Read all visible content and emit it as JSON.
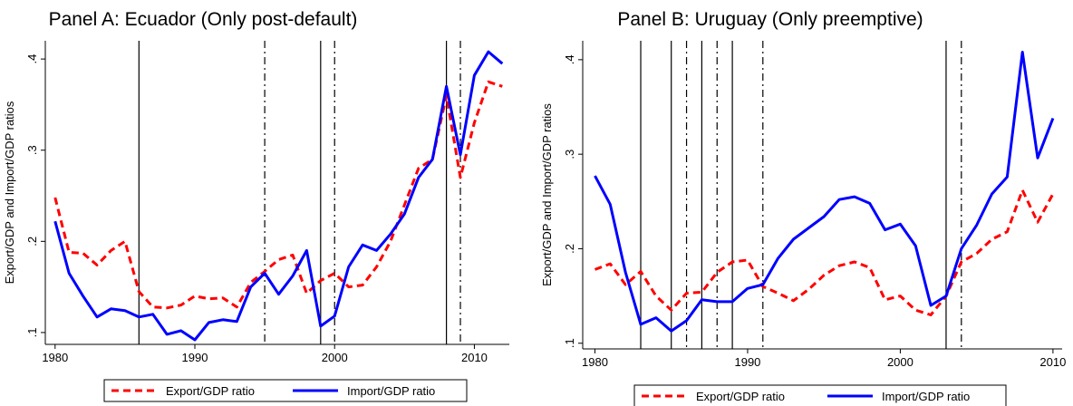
{
  "chart_data": [
    {
      "type": "line",
      "title": "Panel A: Ecuador (Only post-default)",
      "y_label": "Export/GDP and Import/GDP ratios",
      "x": [
        1980,
        1981,
        1982,
        1983,
        1984,
        1985,
        1986,
        1987,
        1988,
        1989,
        1990,
        1991,
        1992,
        1993,
        1994,
        1995,
        1996,
        1997,
        1998,
        1999,
        2000,
        2001,
        2002,
        2003,
        2004,
        2005,
        2006,
        2007,
        2008,
        2009,
        2010,
        2011,
        2012
      ],
      "series": [
        {
          "name": "Export/GDP ratio",
          "color": "#ff0000",
          "dash": true,
          "values": [
            0.248,
            0.188,
            0.187,
            0.174,
            0.19,
            0.2,
            0.145,
            0.128,
            0.127,
            0.13,
            0.14,
            0.137,
            0.138,
            0.128,
            0.155,
            0.167,
            0.18,
            0.185,
            0.143,
            0.157,
            0.165,
            0.15,
            0.152,
            0.172,
            0.2,
            0.24,
            0.28,
            0.29,
            0.36,
            0.27,
            0.33,
            0.375,
            0.37
          ]
        },
        {
          "name": "Import/GDP ratio",
          "color": "#0000ff",
          "dash": false,
          "values": [
            0.222,
            0.165,
            0.14,
            0.117,
            0.126,
            0.124,
            0.117,
            0.12,
            0.098,
            0.102,
            0.092,
            0.111,
            0.114,
            0.112,
            0.15,
            0.165,
            0.142,
            0.162,
            0.19,
            0.107,
            0.118,
            0.172,
            0.196,
            0.19,
            0.208,
            0.23,
            0.27,
            0.29,
            0.37,
            0.295,
            0.382,
            0.408,
            0.395
          ]
        }
      ],
      "vlines": [
        {
          "x": 1986,
          "style": "solid"
        },
        {
          "x": 1995,
          "style": "dashed"
        },
        {
          "x": 1999,
          "style": "solid"
        },
        {
          "x": 2000,
          "style": "dashed"
        },
        {
          "x": 2008,
          "style": "solid"
        },
        {
          "x": 2009,
          "style": "dashed"
        }
      ],
      "xlim": [
        1979.3,
        2012.5
      ],
      "xticks": [
        1980,
        1990,
        2000,
        2010
      ],
      "ylim": [
        0.087,
        0.42
      ],
      "yticks": [
        {
          "value": 0.1,
          "label": ".1"
        },
        {
          "value": 0.2,
          "label": ".2"
        },
        {
          "value": 0.3,
          "label": ".3"
        },
        {
          "value": 0.4,
          "label": ".4"
        }
      ],
      "legend_position": "bottom"
    },
    {
      "type": "line",
      "title": "Panel B: Uruguay (Only preemptive)",
      "y_label": "Export/GDP and Import/GDP ratios",
      "x": [
        1980,
        1981,
        1982,
        1983,
        1984,
        1985,
        1986,
        1987,
        1988,
        1989,
        1990,
        1991,
        1992,
        1993,
        1994,
        1995,
        1996,
        1997,
        1998,
        1999,
        2000,
        2001,
        2002,
        2003,
        2004,
        2005,
        2006,
        2007,
        2008,
        2009,
        2010
      ],
      "series": [
        {
          "name": "Export/GDP ratio",
          "color": "#ff0000",
          "dash": true,
          "values": [
            0.178,
            0.184,
            0.162,
            0.176,
            0.15,
            0.135,
            0.153,
            0.154,
            0.175,
            0.186,
            0.188,
            0.16,
            0.153,
            0.145,
            0.157,
            0.172,
            0.182,
            0.186,
            0.18,
            0.146,
            0.15,
            0.135,
            0.13,
            0.15,
            0.186,
            0.195,
            0.21,
            0.218,
            0.262,
            0.228,
            0.258
          ]
        },
        {
          "name": "Import/GDP ratio",
          "color": "#0000ff",
          "dash": false,
          "values": [
            0.277,
            0.247,
            0.175,
            0.12,
            0.127,
            0.113,
            0.124,
            0.146,
            0.144,
            0.144,
            0.158,
            0.162,
            0.19,
            0.21,
            0.222,
            0.234,
            0.252,
            0.255,
            0.248,
            0.22,
            0.226,
            0.203,
            0.14,
            0.15,
            0.2,
            0.225,
            0.258,
            0.276,
            0.408,
            0.296,
            0.338
          ]
        }
      ],
      "vlines": [
        {
          "x": 1983,
          "style": "solid"
        },
        {
          "x": 1985,
          "style": "solid"
        },
        {
          "x": 1986,
          "style": "dashed"
        },
        {
          "x": 1987,
          "style": "solid"
        },
        {
          "x": 1988,
          "style": "dashed"
        },
        {
          "x": 1989,
          "style": "solid"
        },
        {
          "x": 1991,
          "style": "dashed"
        },
        {
          "x": 2003,
          "style": "solid"
        },
        {
          "x": 2004,
          "style": "dashed"
        }
      ],
      "xlim": [
        1979.2,
        2010.6
      ],
      "xticks": [
        1980,
        1990,
        2000,
        2010
      ],
      "ylim": [
        0.094,
        0.42
      ],
      "yticks": [
        {
          "value": 0.1,
          "label": ".1"
        },
        {
          "value": 0.2,
          "label": ".2"
        },
        {
          "value": 0.3,
          "label": ".3"
        },
        {
          "value": 0.4,
          "label": ".4"
        }
      ],
      "legend_position": "bottom"
    }
  ]
}
